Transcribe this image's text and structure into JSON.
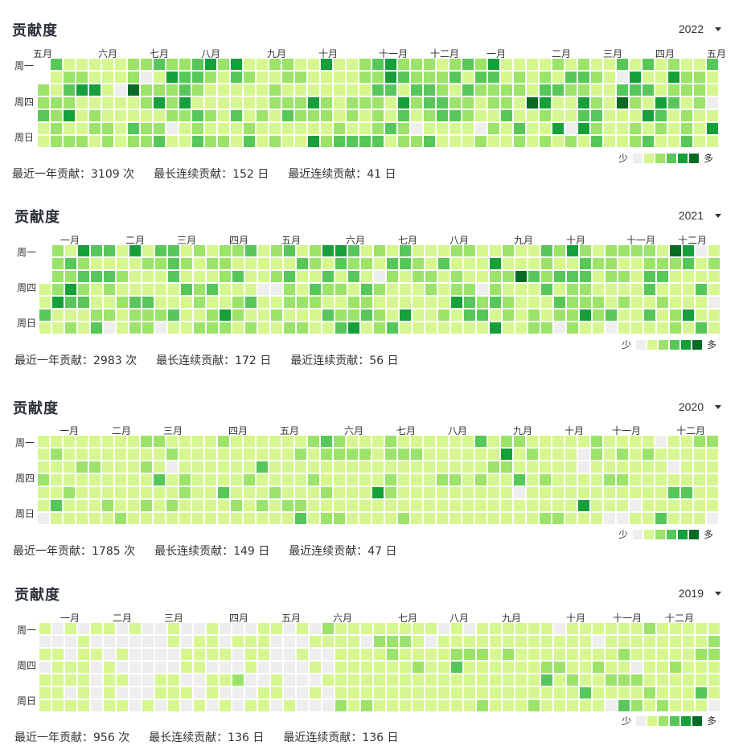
{
  "colors": {
    "levels": [
      "#eeeeee",
      "#d6f78f",
      "#9be369",
      "#58c75a",
      "#15a03a",
      "#086b24"
    ]
  },
  "legend": {
    "less": "少",
    "more": "多"
  },
  "weekday_labels": [
    "周一",
    "周四",
    "周日"
  ],
  "panels": [
    {
      "title": "贡献度",
      "year": "2022",
      "months": [
        "五月",
        "六月",
        "七月",
        "八月",
        "九月",
        "十月",
        "十一月",
        "十二月",
        "一月",
        "二月",
        "三月",
        "四月",
        "五月"
      ],
      "stats": {
        "total_label": "最近一年贡献：3109 次",
        "longest_label": "最长连续贡献：152 日",
        "recent_label": "最近连续贡献：41 日"
      },
      "heat_profile": "high",
      "total": 3109
    },
    {
      "title": "贡献度",
      "year": "2021",
      "months": [
        "一月",
        "二月",
        "三月",
        "四月",
        "五月",
        "六月",
        "七月",
        "八月",
        "九月",
        "十月",
        "十一月",
        "十二月"
      ],
      "stats": {
        "total_label": "最近一年贡献：2983 次",
        "longest_label": "最长连续贡献：172 日",
        "recent_label": "最近连续贡献：56 日"
      },
      "heat_profile": "mid",
      "total": 2983
    },
    {
      "title": "贡献度",
      "year": "2020",
      "months": [
        "一月",
        "二月",
        "三月",
        "四月",
        "五月",
        "六月",
        "七月",
        "八月",
        "九月",
        "十月",
        "十一月",
        "十二月"
      ],
      "stats": {
        "total_label": "最近一年贡献：1785 次",
        "longest_label": "最长连续贡献：149 日",
        "recent_label": "最近连续贡献：47 日"
      },
      "heat_profile": "low",
      "total": 1785
    },
    {
      "title": "贡献度",
      "year": "2019",
      "months": [
        "一月",
        "二月",
        "三月",
        "四月",
        "五月",
        "六月",
        "七月",
        "八月",
        "九月",
        "十月",
        "十一月",
        "十二月"
      ],
      "stats": {
        "total_label": "最近一年贡献：956 次",
        "longest_label": "最长连续贡献：136 日",
        "recent_label": "最近连续贡献：136 日"
      },
      "heat_profile": "sparse",
      "total": 956
    }
  ]
}
